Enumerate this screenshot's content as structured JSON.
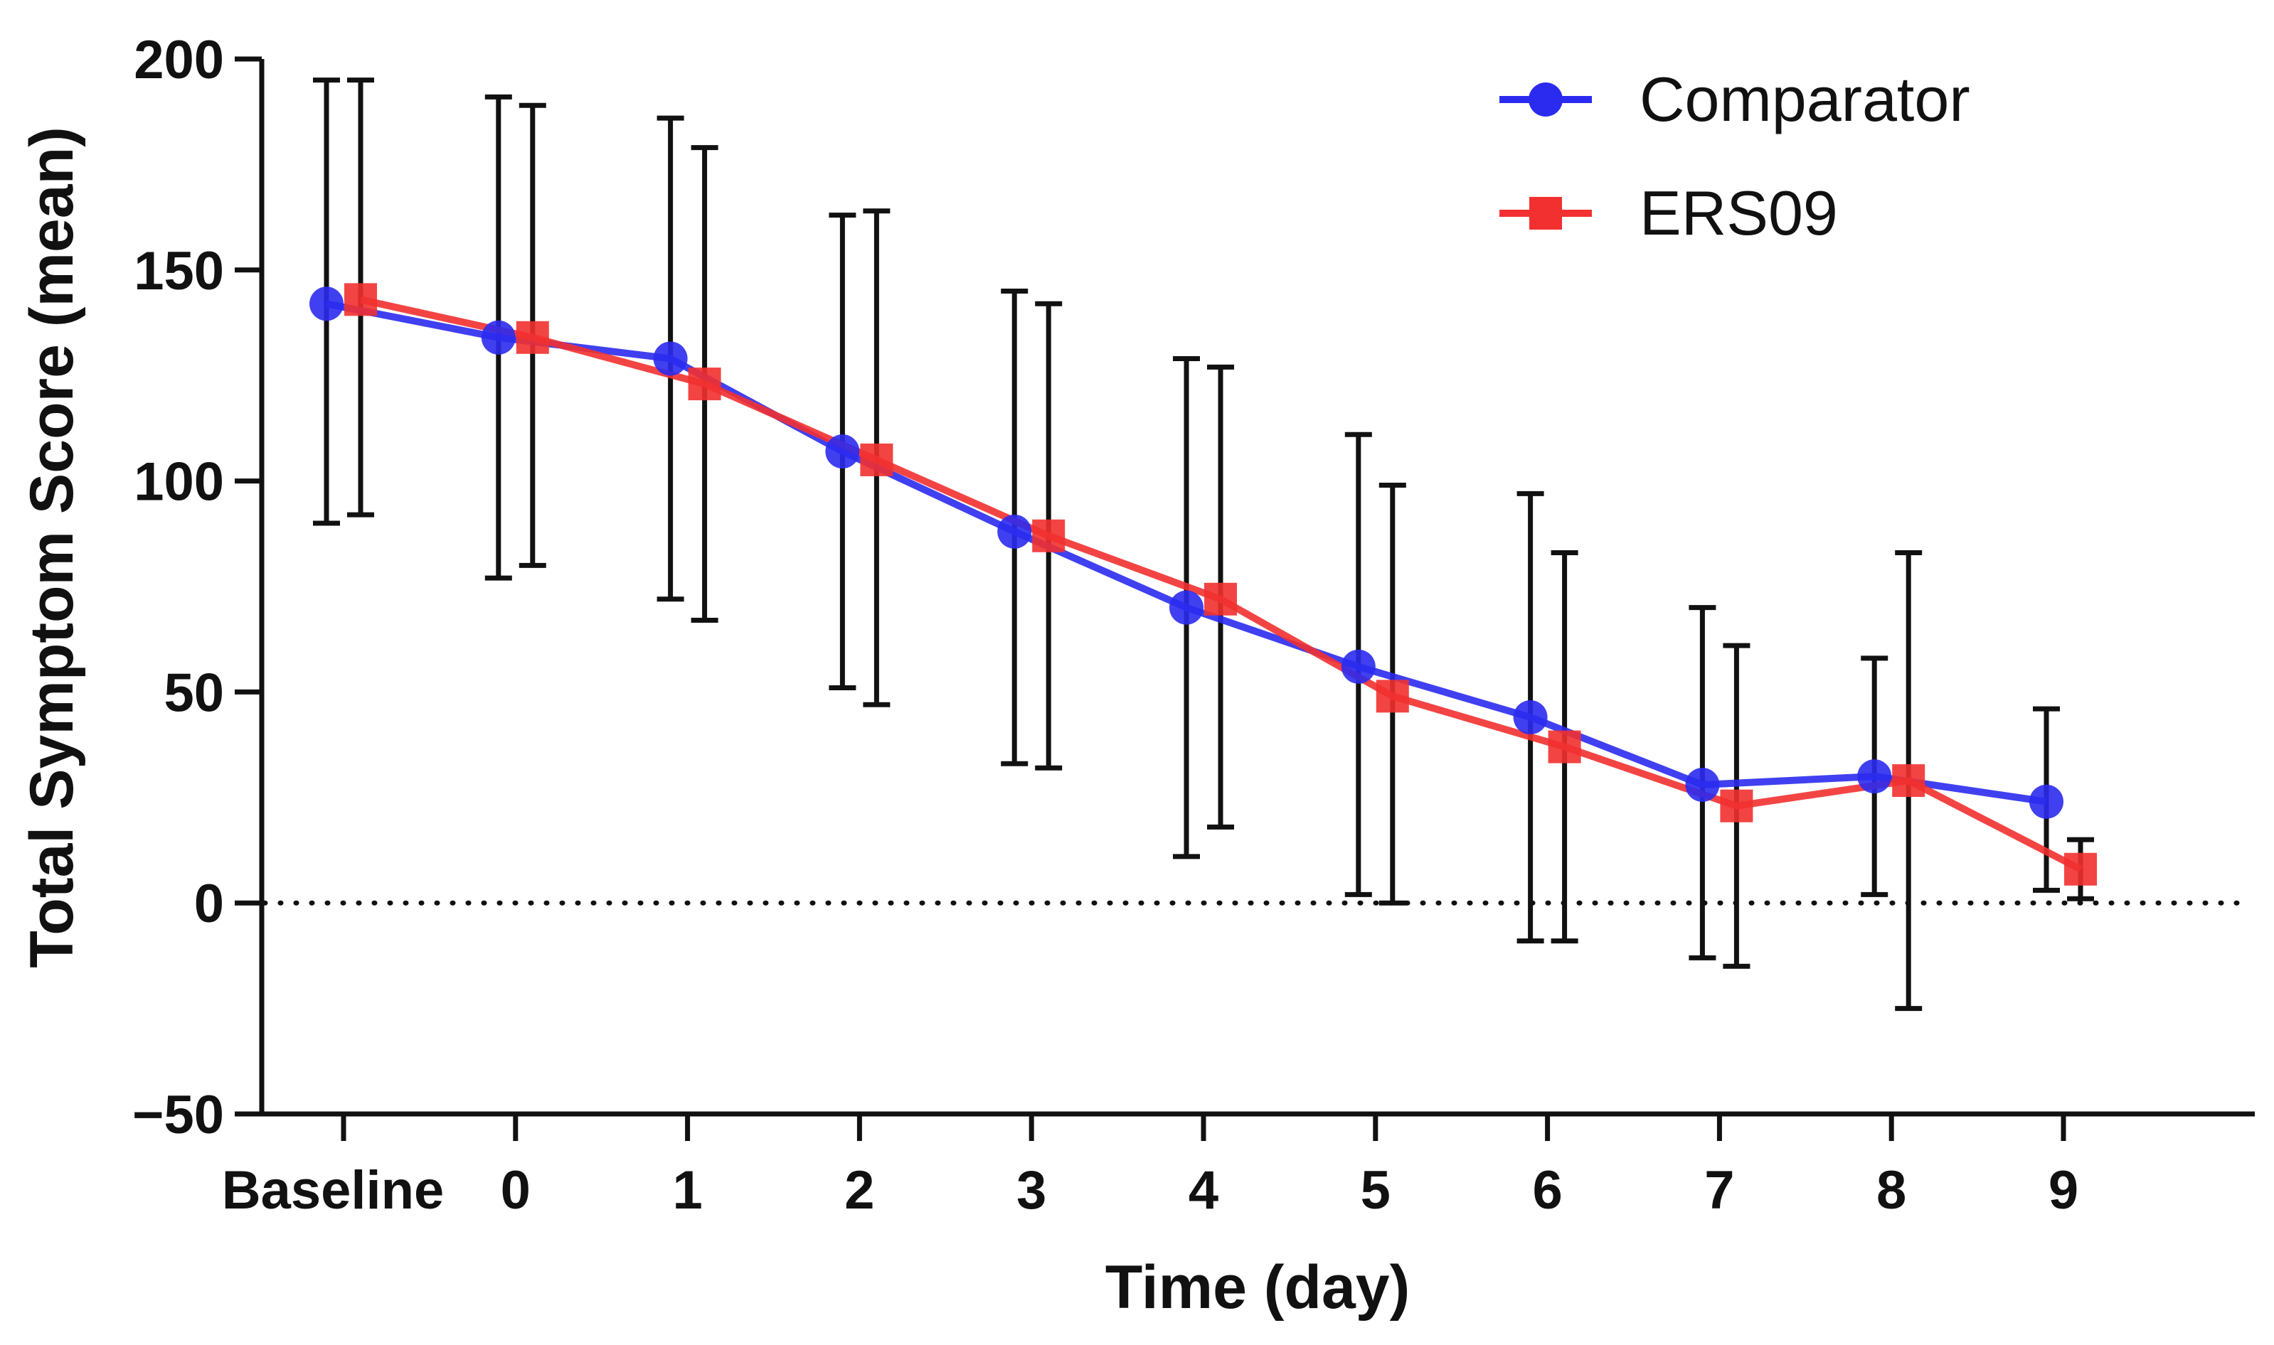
{
  "chart_data": {
    "type": "line",
    "title": "",
    "xlabel": "Time (day)",
    "ylabel": "Total Symptom Score (mean)",
    "categories": [
      "Baseline",
      "0",
      "1",
      "2",
      "3",
      "4",
      "5",
      "6",
      "7",
      "8",
      "9"
    ],
    "ylim": [
      -50,
      200
    ],
    "yticks": [
      "200",
      "150",
      "100",
      "50",
      "0",
      "−50"
    ],
    "ytick_values": [
      200,
      150,
      100,
      50,
      0,
      -50
    ],
    "reference_line": {
      "y": 0,
      "style": "dotted"
    },
    "grid": false,
    "legend_position": "top-right",
    "series": [
      {
        "name": "Comparator",
        "color": "#2b2bf0",
        "marker": "circle",
        "values": [
          142,
          134,
          129,
          107,
          88,
          70,
          56,
          44,
          28,
          30,
          24
        ],
        "error_low": [
          90,
          77,
          72,
          51,
          33,
          11,
          2,
          -9,
          -13,
          2,
          3
        ],
        "error_high": [
          195,
          191,
          186,
          163,
          145,
          129,
          111,
          97,
          70,
          58,
          46
        ]
      },
      {
        "name": "ERS09",
        "color": "#f23030",
        "marker": "square",
        "values": [
          143,
          134,
          123,
          105,
          87,
          72,
          49,
          37,
          23,
          29,
          8
        ],
        "error_low": [
          92,
          80,
          67,
          47,
          32,
          18,
          0,
          -9,
          -15,
          -25,
          1
        ],
        "error_high": [
          195,
          189,
          179,
          164,
          142,
          127,
          99,
          83,
          61,
          83,
          15
        ]
      }
    ]
  }
}
